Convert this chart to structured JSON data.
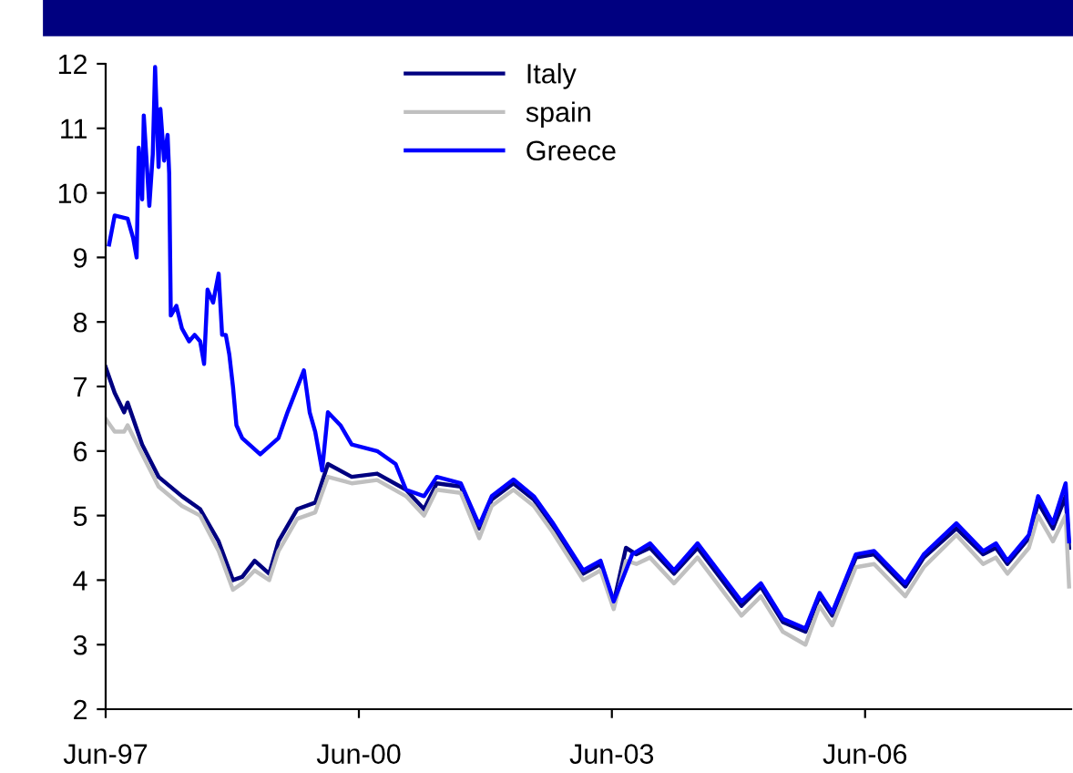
{
  "chart_data": {
    "type": "line",
    "xlim": [
      "1997-06-01",
      "2008-11-09"
    ],
    "ylim": [
      2,
      12
    ],
    "yticks": [
      2,
      3,
      4,
      5,
      6,
      7,
      8,
      9,
      10,
      11,
      12
    ],
    "xticks": [
      {
        "value": "1997-06-01",
        "label": "Jun-97"
      },
      {
        "value": "2000-06-01",
        "label": "Jun-00"
      },
      {
        "value": "2003-06-01",
        "label": "Jun-03"
      },
      {
        "value": "2006-06-01",
        "label": "Jun-06"
      }
    ],
    "grid": false,
    "legend": "top center",
    "marker": "none",
    "line_style": "solid",
    "series": [
      {
        "name": "Italy",
        "color": "#000080",
        "x": [
          "1997-06-01",
          "1997-07-10",
          "1997-08-20",
          "1997-09-04",
          "1997-11-06",
          "1998-01-16",
          "1998-04-27",
          "1998-07-15",
          "1998-10-03",
          "1998-12-04",
          "1999-01-13",
          "1999-03-08",
          "1999-05-10",
          "1999-06-19",
          "1999-09-08",
          "1999-11-25",
          "2000-01-19",
          "2000-05-01",
          "2000-08-19",
          "2000-12-22",
          "2001-03-10",
          "2001-05-04",
          "2001-08-16",
          "2001-11-04",
          "2001-12-28",
          "2002-04-01",
          "2002-06-28",
          "2002-09-16",
          "2003-01-28",
          "2003-04-13",
          "2003-06-09",
          "2003-08-01",
          "2003-09-15",
          "2003-11-13",
          "2004-02-25",
          "2004-06-06",
          "2004-12-13",
          "2005-03-07",
          "2005-06-10",
          "2005-09-16",
          "2005-11-16",
          "2006-01-10",
          "2006-04-22",
          "2006-07-10",
          "2006-11-22",
          "2007-02-10",
          "2007-07-01",
          "2007-10-25",
          "2007-12-19",
          "2008-02-07",
          "2008-05-10",
          "2008-06-19",
          "2008-08-22",
          "2008-10-16",
          "2008-10-31"
        ],
        "values": [
          7.3,
          6.9,
          6.6,
          6.75,
          6.1,
          5.6,
          5.3,
          5.1,
          4.6,
          4.0,
          4.05,
          4.3,
          4.1,
          4.6,
          5.1,
          5.2,
          5.8,
          5.6,
          5.65,
          5.4,
          5.1,
          5.5,
          5.45,
          4.8,
          5.25,
          5.5,
          5.25,
          4.85,
          4.1,
          4.25,
          3.65,
          4.5,
          4.4,
          4.5,
          4.1,
          4.5,
          3.6,
          3.9,
          3.35,
          3.2,
          3.75,
          3.45,
          4.35,
          4.4,
          3.9,
          4.35,
          4.8,
          4.4,
          4.5,
          4.25,
          4.65,
          5.2,
          4.8,
          5.3,
          4.5
        ]
      },
      {
        "name": "spain",
        "color": "#c0c0c0",
        "x": [
          "1997-06-01",
          "1997-07-10",
          "1997-08-20",
          "1997-09-04",
          "1997-11-06",
          "1998-01-16",
          "1998-04-27",
          "1998-07-15",
          "1998-10-03",
          "1998-12-04",
          "1999-01-13",
          "1999-03-08",
          "1999-05-10",
          "1999-06-19",
          "1999-09-08",
          "1999-11-25",
          "2000-01-19",
          "2000-05-01",
          "2000-08-19",
          "2000-12-22",
          "2001-03-10",
          "2001-05-04",
          "2001-08-16",
          "2001-11-04",
          "2001-12-28",
          "2002-04-01",
          "2002-06-28",
          "2002-09-16",
          "2003-01-28",
          "2003-04-13",
          "2003-06-09",
          "2003-08-01",
          "2003-09-15",
          "2003-11-13",
          "2004-02-25",
          "2004-06-06",
          "2004-12-13",
          "2005-03-07",
          "2005-06-10",
          "2005-09-16",
          "2005-11-16",
          "2006-01-10",
          "2006-04-22",
          "2006-07-10",
          "2006-11-22",
          "2007-02-10",
          "2007-07-01",
          "2007-10-25",
          "2007-12-19",
          "2008-02-07",
          "2008-05-10",
          "2008-06-19",
          "2008-08-22",
          "2008-10-16",
          "2008-10-31"
        ],
        "values": [
          6.5,
          6.3,
          6.3,
          6.4,
          5.95,
          5.45,
          5.15,
          5.0,
          4.45,
          3.85,
          3.95,
          4.15,
          4.0,
          4.45,
          4.95,
          5.05,
          5.6,
          5.5,
          5.55,
          5.3,
          5.0,
          5.4,
          5.35,
          4.65,
          5.15,
          5.4,
          5.15,
          4.75,
          4.0,
          4.15,
          3.55,
          4.3,
          4.25,
          4.35,
          3.95,
          4.35,
          3.45,
          3.75,
          3.2,
          3.0,
          3.6,
          3.3,
          4.2,
          4.25,
          3.75,
          4.2,
          4.7,
          4.25,
          4.35,
          4.1,
          4.5,
          5.0,
          4.6,
          5.0,
          3.9
        ]
      },
      {
        "name": "Greece",
        "color": "#0000ff",
        "x": [
          "1997-06-16",
          "1997-07-10",
          "1997-09-04",
          "1997-09-28",
          "1997-10-13",
          "1997-10-22",
          "1997-11-06",
          "1997-11-13",
          "1997-12-07",
          "1997-12-22",
          "1998-01-01",
          "1998-01-16",
          "1998-01-24",
          "1998-02-09",
          "1998-02-24",
          "1998-03-03",
          "1998-03-10",
          "1998-04-03",
          "1998-04-27",
          "1998-05-28",
          "1998-06-21",
          "1998-07-15",
          "1998-08-01",
          "1998-08-16",
          "1998-09-09",
          "1998-10-03",
          "1998-10-18",
          "1998-11-03",
          "1998-11-18",
          "1998-12-04",
          "1998-12-19",
          "1999-01-13",
          "1999-04-01",
          "1999-06-19",
          "1999-07-28",
          "1999-10-07",
          "1999-11-01",
          "1999-11-25",
          "1999-12-25",
          "2000-01-19",
          "2000-03-13",
          "2000-05-01",
          "2000-08-19",
          "2000-11-07",
          "2000-12-22",
          "2001-03-10",
          "2001-05-04",
          "2001-08-16",
          "2001-11-04",
          "2001-12-28",
          "2002-04-01",
          "2002-06-28",
          "2002-09-16",
          "2003-01-28",
          "2003-04-13",
          "2003-06-09",
          "2003-08-28",
          "2003-11-13",
          "2004-02-25",
          "2004-06-06",
          "2004-12-13",
          "2005-03-07",
          "2005-06-10",
          "2005-09-16",
          "2005-11-16",
          "2006-01-10",
          "2006-04-22",
          "2006-07-10",
          "2006-11-22",
          "2007-02-10",
          "2007-07-01",
          "2007-10-25",
          "2007-12-19",
          "2008-02-07",
          "2008-05-10",
          "2008-06-19",
          "2008-08-22",
          "2008-10-16",
          "2008-10-31"
        ],
        "values": [
          9.2,
          9.65,
          9.6,
          9.3,
          9.0,
          10.7,
          9.9,
          11.2,
          9.8,
          10.6,
          11.95,
          10.4,
          11.3,
          10.5,
          10.9,
          10.3,
          8.1,
          8.25,
          7.9,
          7.7,
          7.8,
          7.7,
          7.35,
          8.5,
          8.3,
          8.75,
          7.8,
          7.8,
          7.5,
          7.0,
          6.4,
          6.2,
          5.95,
          6.2,
          6.6,
          7.25,
          6.6,
          6.3,
          5.7,
          6.6,
          6.4,
          6.1,
          6.0,
          5.8,
          5.4,
          5.3,
          5.6,
          5.5,
          4.85,
          5.3,
          5.56,
          5.3,
          4.9,
          4.15,
          4.3,
          3.67,
          4.4,
          4.57,
          4.15,
          4.57,
          3.67,
          3.95,
          3.4,
          3.25,
          3.8,
          3.5,
          4.4,
          4.45,
          3.95,
          4.4,
          4.88,
          4.45,
          4.57,
          4.3,
          4.7,
          5.3,
          4.88,
          5.5,
          4.6
        ]
      }
    ]
  }
}
